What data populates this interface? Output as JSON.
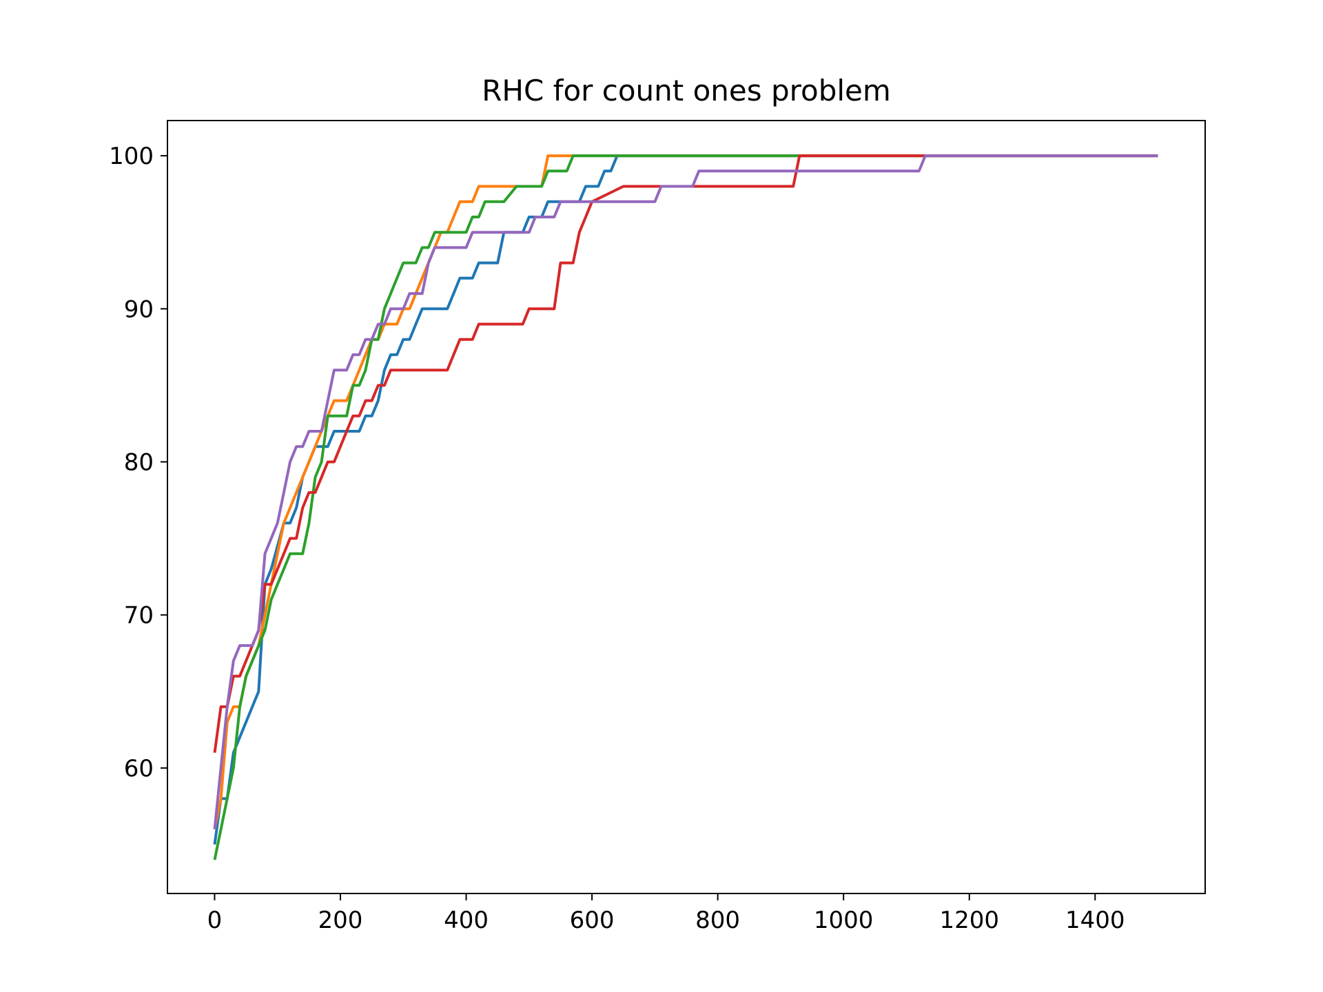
{
  "chart_data": {
    "type": "line",
    "title": "RHC for count ones problem",
    "xlabel": "",
    "ylabel": "",
    "xlim": [
      -75,
      1575
    ],
    "ylim": [
      51.8,
      102.3
    ],
    "xticks": [
      0,
      200,
      400,
      600,
      800,
      1000,
      1200,
      1400
    ],
    "yticks": [
      60,
      70,
      80,
      90,
      100
    ],
    "grid": false,
    "legend": "none",
    "series": [
      {
        "color": "#1f77b4",
        "points": [
          [
            0,
            55
          ],
          [
            10,
            58
          ],
          [
            20,
            58
          ],
          [
            30,
            61
          ],
          [
            70,
            65
          ],
          [
            80,
            72
          ],
          [
            90,
            73
          ],
          [
            110,
            76
          ],
          [
            120,
            76
          ],
          [
            130,
            77
          ],
          [
            140,
            79
          ],
          [
            150,
            80
          ],
          [
            160,
            81
          ],
          [
            180,
            81
          ],
          [
            190,
            82
          ],
          [
            230,
            82
          ],
          [
            240,
            83
          ],
          [
            250,
            83
          ],
          [
            260,
            84
          ],
          [
            270,
            86
          ],
          [
            280,
            87
          ],
          [
            290,
            87
          ],
          [
            300,
            88
          ],
          [
            310,
            88
          ],
          [
            320,
            89
          ],
          [
            330,
            90
          ],
          [
            370,
            90
          ],
          [
            380,
            91
          ],
          [
            390,
            92
          ],
          [
            410,
            92
          ],
          [
            420,
            93
          ],
          [
            450,
            93
          ],
          [
            460,
            95
          ],
          [
            490,
            95
          ],
          [
            500,
            96
          ],
          [
            520,
            96
          ],
          [
            530,
            97
          ],
          [
            580,
            97
          ],
          [
            590,
            98
          ],
          [
            610,
            98
          ],
          [
            620,
            99
          ],
          [
            630,
            99
          ],
          [
            640,
            100
          ],
          [
            1500,
            100
          ]
        ]
      },
      {
        "color": "#ff7f0e",
        "points": [
          [
            0,
            56
          ],
          [
            10,
            58
          ],
          [
            20,
            63
          ],
          [
            30,
            64
          ],
          [
            40,
            64
          ],
          [
            50,
            66
          ],
          [
            60,
            67
          ],
          [
            70,
            68
          ],
          [
            80,
            70
          ],
          [
            90,
            72
          ],
          [
            100,
            74
          ],
          [
            110,
            76
          ],
          [
            120,
            77
          ],
          [
            130,
            78
          ],
          [
            140,
            79
          ],
          [
            150,
            80
          ],
          [
            160,
            81
          ],
          [
            170,
            82
          ],
          [
            180,
            83
          ],
          [
            190,
            84
          ],
          [
            210,
            84
          ],
          [
            220,
            85
          ],
          [
            230,
            86
          ],
          [
            240,
            87
          ],
          [
            250,
            88
          ],
          [
            260,
            88
          ],
          [
            270,
            89
          ],
          [
            290,
            89
          ],
          [
            300,
            90
          ],
          [
            310,
            90
          ],
          [
            320,
            91
          ],
          [
            330,
            92
          ],
          [
            340,
            93
          ],
          [
            350,
            94
          ],
          [
            360,
            95
          ],
          [
            370,
            95
          ],
          [
            380,
            96
          ],
          [
            390,
            97
          ],
          [
            410,
            97
          ],
          [
            420,
            98
          ],
          [
            520,
            98
          ],
          [
            530,
            100
          ],
          [
            1500,
            100
          ]
        ]
      },
      {
        "color": "#2ca02c",
        "points": [
          [
            0,
            54
          ],
          [
            10,
            56
          ],
          [
            20,
            58
          ],
          [
            30,
            60
          ],
          [
            40,
            64
          ],
          [
            50,
            66
          ],
          [
            60,
            67
          ],
          [
            70,
            68
          ],
          [
            80,
            69
          ],
          [
            90,
            71
          ],
          [
            100,
            72
          ],
          [
            110,
            73
          ],
          [
            120,
            74
          ],
          [
            140,
            74
          ],
          [
            150,
            76
          ],
          [
            160,
            79
          ],
          [
            170,
            80
          ],
          [
            180,
            83
          ],
          [
            210,
            83
          ],
          [
            220,
            85
          ],
          [
            230,
            85
          ],
          [
            240,
            86
          ],
          [
            250,
            88
          ],
          [
            260,
            88
          ],
          [
            270,
            90
          ],
          [
            280,
            91
          ],
          [
            290,
            92
          ],
          [
            300,
            93
          ],
          [
            320,
            93
          ],
          [
            330,
            94
          ],
          [
            340,
            94
          ],
          [
            350,
            95
          ],
          [
            400,
            95
          ],
          [
            410,
            96
          ],
          [
            420,
            96
          ],
          [
            430,
            97
          ],
          [
            460,
            97
          ],
          [
            480,
            98
          ],
          [
            510,
            98
          ],
          [
            520,
            98
          ],
          [
            530,
            99
          ],
          [
            560,
            99
          ],
          [
            570,
            100
          ],
          [
            1500,
            100
          ]
        ]
      },
      {
        "color": "#d62728",
        "points": [
          [
            0,
            61
          ],
          [
            10,
            64
          ],
          [
            20,
            64
          ],
          [
            30,
            66
          ],
          [
            40,
            66
          ],
          [
            70,
            69
          ],
          [
            80,
            72
          ],
          [
            90,
            72
          ],
          [
            100,
            73
          ],
          [
            110,
            74
          ],
          [
            120,
            75
          ],
          [
            130,
            75
          ],
          [
            140,
            77
          ],
          [
            150,
            78
          ],
          [
            160,
            78
          ],
          [
            170,
            79
          ],
          [
            180,
            80
          ],
          [
            190,
            80
          ],
          [
            200,
            81
          ],
          [
            210,
            82
          ],
          [
            220,
            83
          ],
          [
            230,
            83
          ],
          [
            240,
            84
          ],
          [
            250,
            84
          ],
          [
            260,
            85
          ],
          [
            270,
            85
          ],
          [
            280,
            86
          ],
          [
            370,
            86
          ],
          [
            390,
            88
          ],
          [
            410,
            88
          ],
          [
            420,
            89
          ],
          [
            490,
            89
          ],
          [
            500,
            90
          ],
          [
            540,
            90
          ],
          [
            550,
            93
          ],
          [
            570,
            93
          ],
          [
            580,
            95
          ],
          [
            590,
            96
          ],
          [
            600,
            97
          ],
          [
            650,
            98
          ],
          [
            920,
            98
          ],
          [
            930,
            100
          ],
          [
            1500,
            100
          ]
        ]
      },
      {
        "color": "#9467bd",
        "points": [
          [
            0,
            56
          ],
          [
            10,
            60
          ],
          [
            20,
            64
          ],
          [
            30,
            67
          ],
          [
            40,
            68
          ],
          [
            60,
            68
          ],
          [
            70,
            69
          ],
          [
            80,
            74
          ],
          [
            100,
            76
          ],
          [
            110,
            78
          ],
          [
            120,
            80
          ],
          [
            130,
            81
          ],
          [
            140,
            81
          ],
          [
            150,
            82
          ],
          [
            170,
            82
          ],
          [
            190,
            86
          ],
          [
            210,
            86
          ],
          [
            220,
            87
          ],
          [
            230,
            87
          ],
          [
            240,
            88
          ],
          [
            250,
            88
          ],
          [
            260,
            89
          ],
          [
            270,
            89
          ],
          [
            280,
            90
          ],
          [
            300,
            90
          ],
          [
            310,
            91
          ],
          [
            330,
            91
          ],
          [
            340,
            93
          ],
          [
            350,
            94
          ],
          [
            400,
            94
          ],
          [
            410,
            95
          ],
          [
            500,
            95
          ],
          [
            510,
            96
          ],
          [
            540,
            96
          ],
          [
            550,
            97
          ],
          [
            700,
            97
          ],
          [
            710,
            98
          ],
          [
            760,
            98
          ],
          [
            770,
            99
          ],
          [
            1120,
            99
          ],
          [
            1130,
            100
          ],
          [
            1500,
            100
          ]
        ]
      }
    ]
  }
}
